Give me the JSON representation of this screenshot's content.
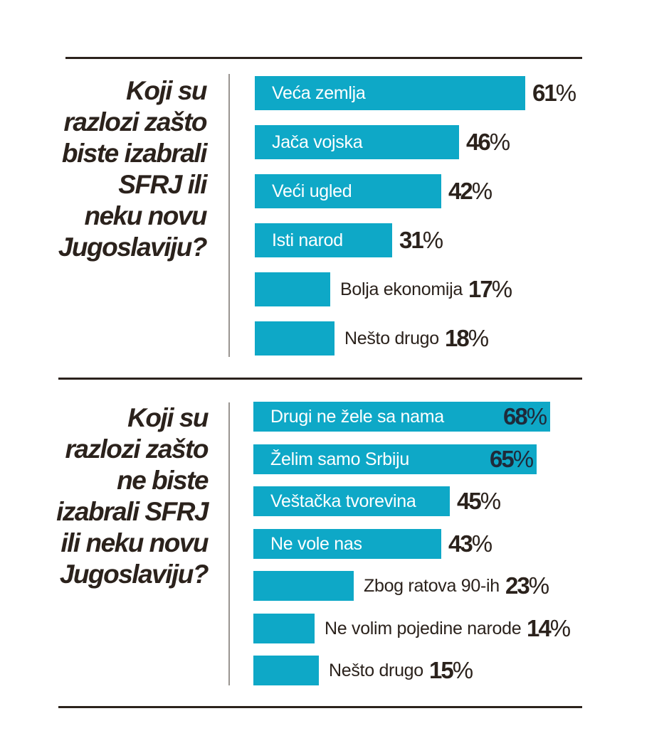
{
  "colors": {
    "bar": "#0ea8c7",
    "text": "#2b221c",
    "inside_label": "#ffffff",
    "dark_value": "#1f2a3a"
  },
  "chart_data": [
    {
      "type": "bar",
      "orientation": "horizontal",
      "title": "Koji su razlozi zašto biste izabrali SFRJ ili neku novu Jugoslaviju?",
      "categories": [
        "Veća zemlja",
        "Jača vojska",
        "Veći ugled",
        "Isti narod",
        "Bolja ekonomija",
        "Nešto drugo"
      ],
      "values": [
        61,
        46,
        42,
        31,
        17,
        18
      ],
      "value_labels": [
        "61%",
        "46%",
        "42%",
        "31%",
        "17%",
        "18%"
      ]
    },
    {
      "type": "bar",
      "orientation": "horizontal",
      "title": "Koji su razlozi zašto ne biste izabrali SFRJ ili neku novu Jugoslaviju?",
      "categories": [
        "Drugi ne žele sa nama",
        "Želim samo Srbiju",
        "Veštačka tvorevina",
        "Ne vole nas",
        "Zbog ratova 90-ih",
        "Ne volim pojedine narode",
        "Nešto drugo"
      ],
      "values": [
        68,
        65,
        45,
        43,
        23,
        14,
        15
      ],
      "value_labels": [
        "68%",
        "65%",
        "45%",
        "43%",
        "23%",
        "14%",
        "15%"
      ]
    }
  ]
}
